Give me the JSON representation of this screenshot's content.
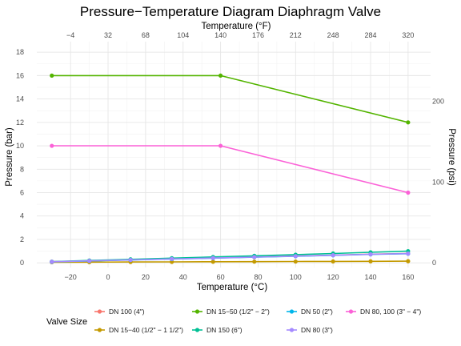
{
  "chart_data": {
    "type": "line",
    "title": "Pressure−Temperature Diagram Diaphragm Valve",
    "xlabel": "Temperature (°C)",
    "ylabel": "Pressure (bar)",
    "x2label": "Temperature (°F)",
    "y2label": "Pressure (psi)",
    "xlim": [
      -38,
      172
    ],
    "ylim": [
      -0.4,
      18.9
    ],
    "x_ticks": [
      -20,
      0,
      20,
      40,
      60,
      80,
      100,
      120,
      140,
      160
    ],
    "x_tick_labels": [
      "−20",
      "0",
      "20",
      "40",
      "60",
      "80",
      "100",
      "120",
      "140",
      "160"
    ],
    "y_ticks": [
      0,
      2,
      4,
      6,
      8,
      10,
      12,
      14,
      16,
      18
    ],
    "y_tick_labels": [
      "0",
      "2",
      "4",
      "6",
      "8",
      "10",
      "12",
      "14",
      "16",
      "18"
    ],
    "x2_ticks": [
      -4,
      32,
      68,
      104,
      140,
      176,
      212,
      248,
      284,
      320
    ],
    "x2_tick_labels": [
      "−4",
      "32",
      "68",
      "104",
      "140",
      "176",
      "212",
      "248",
      "284",
      "320"
    ],
    "y2_ticks": [
      0,
      100,
      200
    ],
    "y2_tick_labels": [
      "0",
      "100",
      "200"
    ],
    "grid": true,
    "legend_position": "bottom",
    "legend_title": "Valve Size",
    "series": [
      {
        "name": "DN 100 (4\")",
        "color": "#F8766D",
        "marker": true,
        "x": [
          -30,
          -10,
          12,
          34,
          56,
          78,
          100,
          120,
          140,
          160
        ],
        "y": [
          0.1,
          0.18,
          0.26,
          0.34,
          0.42,
          0.5,
          0.58,
          0.66,
          0.74,
          0.8
        ]
      },
      {
        "name": "DN 15−40 (1/2\" − 1 1/2\")",
        "color": "#C49A00",
        "marker": true,
        "x": [
          -30,
          -10,
          12,
          34,
          56,
          78,
          100,
          120,
          140,
          160
        ],
        "y": [
          0.05,
          0.06,
          0.07,
          0.08,
          0.09,
          0.1,
          0.11,
          0.12,
          0.13,
          0.14
        ]
      },
      {
        "name": "DN 15−50 (1/2\" − 2\")",
        "color": "#53B400",
        "marker": true,
        "x": [
          -30,
          60,
          160
        ],
        "y": [
          16,
          16,
          12
        ]
      },
      {
        "name": "DN 150 (6\")",
        "color": "#00C094",
        "marker": true,
        "x": [
          -30,
          -10,
          12,
          34,
          56,
          78,
          100,
          120,
          140,
          160
        ],
        "y": [
          0.1,
          0.2,
          0.3,
          0.4,
          0.5,
          0.6,
          0.7,
          0.8,
          0.9,
          1.0
        ]
      },
      {
        "name": "DN 50 (2\")",
        "color": "#00B6EB",
        "marker": true,
        "x": [
          -30,
          -10,
          12,
          34,
          56,
          78,
          100,
          120,
          140,
          160
        ],
        "y": [
          0.08,
          0.16,
          0.24,
          0.32,
          0.4,
          0.48,
          0.56,
          0.64,
          0.72,
          0.78
        ]
      },
      {
        "name": "DN 80 (3\")",
        "color": "#A58AFF",
        "marker": true,
        "x": [
          -30,
          -10,
          12,
          34,
          56,
          78,
          100,
          120,
          140,
          160
        ],
        "y": [
          0.09,
          0.17,
          0.25,
          0.33,
          0.41,
          0.49,
          0.57,
          0.65,
          0.73,
          0.79
        ]
      },
      {
        "name": "DN 80, 100 (3\" − 4\")",
        "color": "#FB61D7",
        "marker": true,
        "x": [
          -30,
          60,
          160
        ],
        "y": [
          10,
          10,
          6
        ]
      }
    ]
  }
}
